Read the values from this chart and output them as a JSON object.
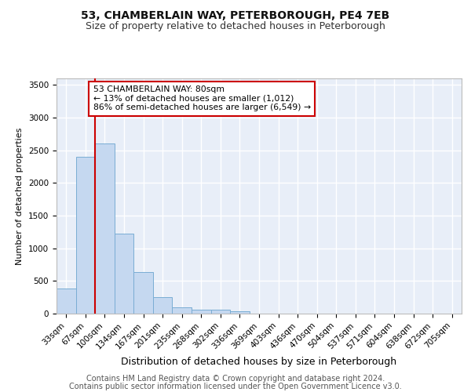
{
  "title1": "53, CHAMBERLAIN WAY, PETERBOROUGH, PE4 7EB",
  "title2": "Size of property relative to detached houses in Peterborough",
  "xlabel": "Distribution of detached houses by size in Peterborough",
  "ylabel": "Number of detached properties",
  "footer1": "Contains HM Land Registry data © Crown copyright and database right 2024.",
  "footer2": "Contains public sector information licensed under the Open Government Licence v3.0.",
  "categories": [
    "33sqm",
    "67sqm",
    "100sqm",
    "134sqm",
    "167sqm",
    "201sqm",
    "235sqm",
    "268sqm",
    "302sqm",
    "336sqm",
    "369sqm",
    "403sqm",
    "436sqm",
    "470sqm",
    "504sqm",
    "537sqm",
    "571sqm",
    "604sqm",
    "638sqm",
    "672sqm",
    "705sqm"
  ],
  "values": [
    390,
    2400,
    2600,
    1230,
    635,
    255,
    95,
    60,
    55,
    40,
    0,
    0,
    0,
    0,
    0,
    0,
    0,
    0,
    0,
    0,
    0
  ],
  "bar_color": "#c5d8f0",
  "bar_edge_color": "#7aadd4",
  "red_line_x": 1.5,
  "annotation_text": "53 CHAMBERLAIN WAY: 80sqm\n← 13% of detached houses are smaller (1,012)\n86% of semi-detached houses are larger (6,549) →",
  "annotation_box_color": "#ffffff",
  "annotation_box_edge_color": "#cc0000",
  "red_line_color": "#cc0000",
  "ylim": [
    0,
    3600
  ],
  "yticks": [
    0,
    500,
    1000,
    1500,
    2000,
    2500,
    3000,
    3500
  ],
  "background_color": "#e8eef8",
  "grid_color": "#ffffff",
  "title1_fontsize": 10,
  "title2_fontsize": 9,
  "xlabel_fontsize": 9,
  "ylabel_fontsize": 8,
  "tick_fontsize": 7.5,
  "footer_fontsize": 7
}
